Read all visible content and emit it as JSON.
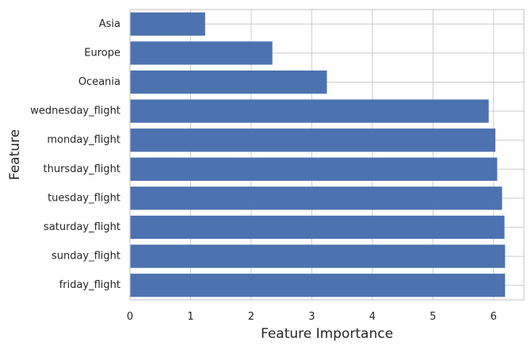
{
  "chart_data": {
    "type": "bar",
    "orientation": "horizontal",
    "categories": [
      "Asia",
      "Europe",
      "Oceania",
      "wednesday_flight",
      "monday_flight",
      "thursday_flight",
      "tuesday_flight",
      "saturday_flight",
      "sunday_flight",
      "friday_flight"
    ],
    "values": [
      1.24,
      2.35,
      3.25,
      5.92,
      6.03,
      6.06,
      6.14,
      6.18,
      6.19,
      6.19
    ],
    "xlabel": "Feature Importance",
    "ylabel": "Feature",
    "xlim": [
      0,
      6.5
    ],
    "xticks": [
      "0",
      "1",
      "2",
      "3",
      "4",
      "5",
      "6"
    ],
    "grid": true,
    "bar_color": "#4c72b0",
    "grid_color": "#cccccc",
    "axes_color": "#cccccc"
  }
}
